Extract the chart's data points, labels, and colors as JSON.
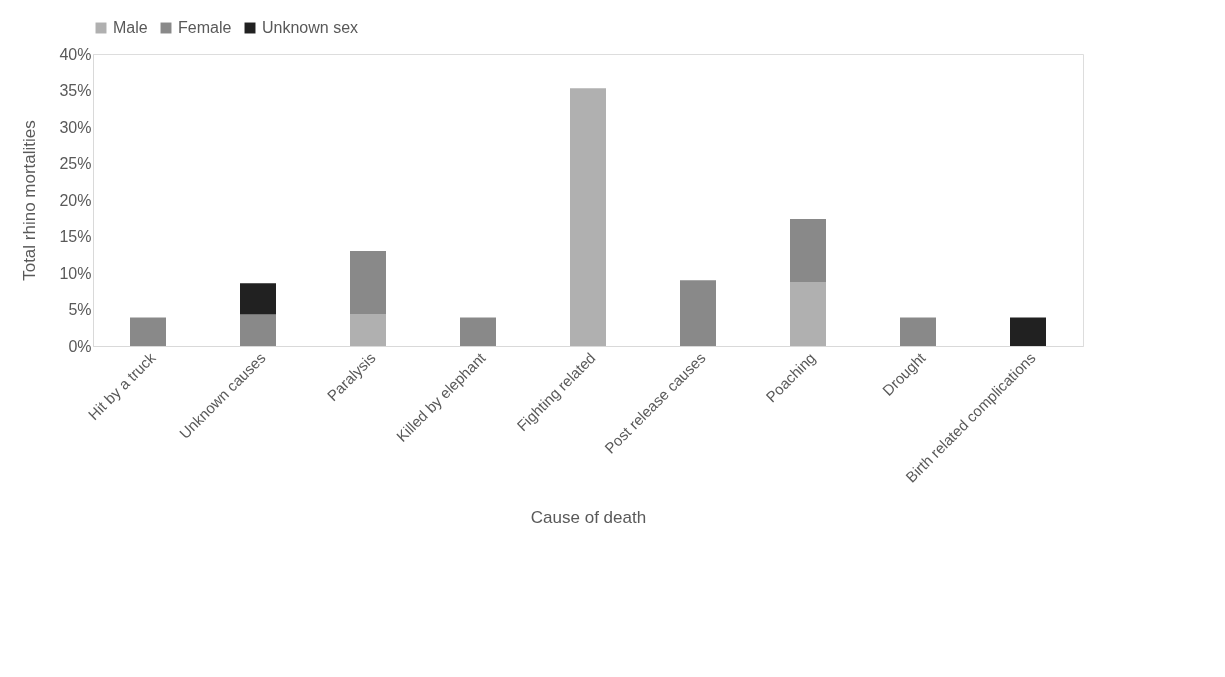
{
  "chart_data": {
    "type": "bar",
    "stacked": true,
    "xlabel": "Cause of death",
    "ylabel": "Total rhino mortalities",
    "categories": [
      "Hit by a truck",
      "Unknown causes",
      "Paralysis",
      "Killed by elephant",
      "Fighting related",
      "Post release causes",
      "Poaching",
      "Drought",
      "Birth related complications"
    ],
    "series": [
      {
        "name": "Male",
        "color": "#b0b0b0",
        "values": [
          null,
          null,
          4.3,
          null,
          35.3,
          null,
          8.7,
          null,
          null
        ]
      },
      {
        "name": "Female",
        "color": "#898989",
        "values": [
          3.9,
          4.3,
          8.7,
          3.9,
          null,
          9.0,
          8.7,
          3.9,
          null
        ]
      },
      {
        "name": "Unknown sex",
        "color": "#212121",
        "values": [
          null,
          4.3,
          null,
          null,
          null,
          null,
          null,
          null,
          3.9
        ]
      }
    ],
    "ylim": [
      0,
      40
    ],
    "yticks": [
      {
        "value": 0,
        "label": "0%"
      },
      {
        "value": 5,
        "label": "5%"
      },
      {
        "value": 10,
        "label": "10%"
      },
      {
        "value": 15,
        "label": "15%"
      },
      {
        "value": 20,
        "label": "20%"
      },
      {
        "value": 25,
        "label": "25%"
      },
      {
        "value": 30,
        "label": "30%"
      },
      {
        "value": 35,
        "label": "35%"
      },
      {
        "value": 40,
        "label": "40%"
      }
    ],
    "legend": "top",
    "grid": false
  }
}
